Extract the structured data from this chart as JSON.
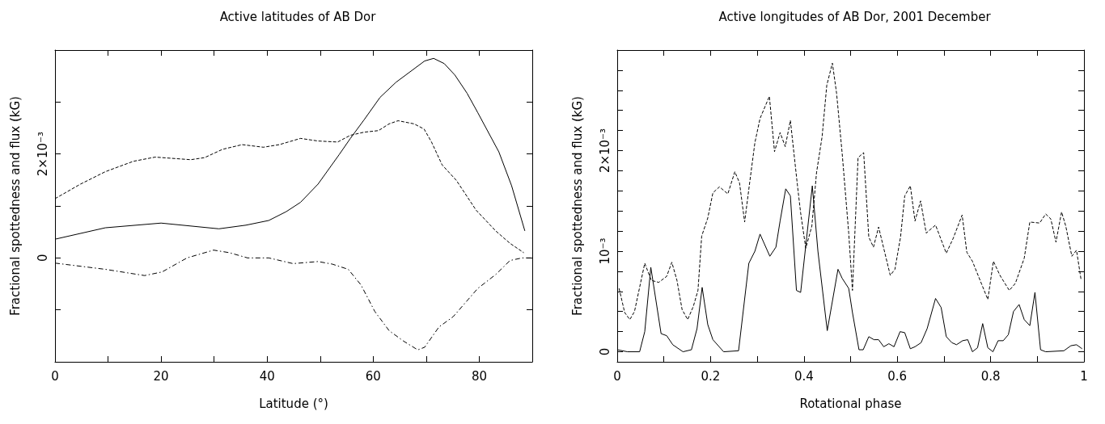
{
  "chart_data": [
    {
      "type": "line",
      "title": "Active latitudes of AB Dor",
      "xlabel": "Latitude (°)",
      "ylabel": "Fractional spottedness and flux (kG)",
      "xlim": [
        0,
        90
      ],
      "xticks": [
        0,
        {
          "value": 10,
          "label": null
        },
        20,
        {
          "value": 30,
          "label": null
        },
        40,
        {
          "value": 50,
          "label": null
        },
        60,
        {
          "value": 70,
          "label": null
        },
        80,
        {
          "value": 90,
          "label": null
        }
      ],
      "ylim": [
        -0.002,
        0.004
      ],
      "yticks": [
        {
          "value": -0.001,
          "label": null
        },
        0,
        {
          "value": 0.001,
          "label": null
        },
        {
          "value": 0.002,
          "label": "2×10⁻³"
        },
        {
          "value": 0.003,
          "label": null
        }
      ],
      "grid": false,
      "marker": "none",
      "series": [
        {
          "color": "#000000",
          "line_style": "solid",
          "x": [
            0,
            9.5,
            20,
            30.9,
            36,
            40.3,
            43.6,
            46.3,
            49.6,
            53.6,
            55.7,
            58.3,
            61.3,
            64.3,
            69.7,
            71.4,
            73.4,
            75.4,
            77.7,
            79.7,
            83.7,
            86.1,
            88.6
          ],
          "values": [
            0.00036,
            0.00058,
            0.00067,
            0.00056,
            0.00063,
            0.00072,
            0.00089,
            0.00107,
            0.00142,
            0.00199,
            0.0023,
            0.00266,
            0.00309,
            0.00338,
            0.00379,
            0.00384,
            0.00374,
            0.00352,
            0.00317,
            0.0028,
            0.00204,
            0.00139,
            0.00052
          ]
        },
        {
          "color": "#000000",
          "line_style": "dashed",
          "x": [
            0,
            4.8,
            9.5,
            14.8,
            18.9,
            25.6,
            28.2,
            31.6,
            35.3,
            39.3,
            42.3,
            46.3,
            49.6,
            53.3,
            55.7,
            58.3,
            61,
            63,
            64.7,
            67.7,
            69.6,
            71,
            73,
            75.7,
            79.4,
            83.1,
            85.8,
            88.4
          ],
          "values": [
            0.00114,
            0.00142,
            0.00166,
            0.00186,
            0.00194,
            0.00189,
            0.00193,
            0.00209,
            0.00218,
            0.00213,
            0.00218,
            0.0023,
            0.00225,
            0.00223,
            0.00236,
            0.00242,
            0.00245,
            0.00258,
            0.00264,
            0.00258,
            0.00248,
            0.00223,
            0.00179,
            0.00149,
            0.00092,
            0.00052,
            0.00028,
            0.0001
          ]
        },
        {
          "color": "#000000",
          "line_style": "dashdot",
          "x": [
            0,
            9.5,
            16.9,
            20.2,
            24.9,
            29.9,
            32.9,
            36.3,
            40.3,
            44.9,
            49.6,
            52.3,
            55.3,
            57.7,
            60.3,
            63,
            65.7,
            68.4,
            69.7,
            72.4,
            75.1,
            79.7,
            83.1,
            85.8,
            88.1,
            90
          ],
          "values": [
            -0.0001,
            -0.00022,
            -0.00034,
            -0.00027,
            0,
            0.00015,
            0.0001,
            0,
            0,
            -0.00011,
            -7e-05,
            -0.00012,
            -0.00022,
            -0.00052,
            -0.00103,
            -0.0014,
            -0.0016,
            -0.00177,
            -0.00172,
            -0.00133,
            -0.00113,
            -0.00059,
            -0.00032,
            -5e-05,
            0,
            0
          ]
        }
      ]
    },
    {
      "type": "line",
      "title": "Active longitudes of AB Dor, 2001 December",
      "xlabel": "Rotational phase",
      "ylabel": "Fractional spottedness and flux (kG)",
      "xlim": [
        0,
        1
      ],
      "xticks": [
        0,
        {
          "value": 0.1,
          "label": null
        },
        0.2,
        {
          "value": 0.3,
          "label": null
        },
        0.4,
        {
          "value": 0.5,
          "label": null
        },
        0.6,
        {
          "value": 0.7,
          "label": null
        },
        0.8,
        {
          "value": 0.9,
          "label": null
        },
        1
      ],
      "ylim": [
        -0.0001,
        0.003
      ],
      "yticks": [
        0,
        {
          "value": 0.0002,
          "label": null
        },
        {
          "value": 0.0004,
          "label": null
        },
        {
          "value": 0.0006,
          "label": null
        },
        {
          "value": 0.0008,
          "label": null
        },
        {
          "value": 0.001,
          "label": "10⁻³"
        },
        {
          "value": 0.0012,
          "label": null
        },
        {
          "value": 0.0014,
          "label": null
        },
        {
          "value": 0.0016,
          "label": null
        },
        {
          "value": 0.0018,
          "label": null
        },
        {
          "value": 0.002,
          "label": "2×10⁻³"
        },
        {
          "value": 0.0022,
          "label": null
        },
        {
          "value": 0.0024,
          "label": null
        },
        {
          "value": 0.0026,
          "label": null
        },
        {
          "value": 0.0028,
          "label": null
        }
      ],
      "grid": false,
      "marker": "none",
      "series": [
        {
          "color": "#000000",
          "line_style": "solid",
          "x": [
            0,
            0.022,
            0.048,
            0.059,
            0.072,
            0.094,
            0.106,
            0.119,
            0.141,
            0.159,
            0.171,
            0.182,
            0.194,
            0.205,
            0.228,
            0.26,
            0.282,
            0.295,
            0.306,
            0.327,
            0.34,
            0.349,
            0.361,
            0.371,
            0.384,
            0.393,
            0.418,
            0.43,
            0.45,
            0.473,
            0.482,
            0.496,
            0.504,
            0.518,
            0.527,
            0.539,
            0.55,
            0.56,
            0.571,
            0.582,
            0.593,
            0.606,
            0.616,
            0.628,
            0.638,
            0.651,
            0.664,
            0.682,
            0.694,
            0.705,
            0.717,
            0.727,
            0.74,
            0.751,
            0.761,
            0.772,
            0.783,
            0.794,
            0.805,
            0.816,
            0.827,
            0.838,
            0.849,
            0.861,
            0.872,
            0.884,
            0.895,
            0.907,
            0.918,
            0.957,
            0.972,
            0.984,
            0.996
          ],
          "values": [
            2e-05,
            0,
            0,
            0.0002,
            0.00084,
            0.00018,
            0.00016,
            7e-05,
            0,
            2e-05,
            0.00023,
            0.00064,
            0.00027,
            0.00012,
            0,
            1e-05,
            0.00088,
            0.001,
            0.00117,
            0.00095,
            0.00104,
            0.0013,
            0.00162,
            0.00155,
            0.00061,
            0.00059,
            0.00165,
            0.001,
            0.00021,
            0.00082,
            0.00073,
            0.00063,
            0.00039,
            2e-05,
            2e-05,
            0.00015,
            0.00012,
            0.00012,
            5e-05,
            8e-05,
            5e-05,
            0.0002,
            0.00019,
            3e-05,
            5e-05,
            9e-05,
            0.00023,
            0.00053,
            0.00044,
            0.00015,
            9e-05,
            7e-05,
            0.00011,
            0.00012,
            0,
            4e-05,
            0.00028,
            4e-05,
            0,
            0.00011,
            0.00011,
            0.00017,
            0.0004,
            0.00047,
            0.00032,
            0.00026,
            0.00059,
            2e-05,
            0,
            1e-05,
            6e-05,
            7e-05,
            3e-05
          ]
        },
        {
          "color": "#000000",
          "line_style": "dashed",
          "x": [
            0.004,
            0.016,
            0.027,
            0.037,
            0.059,
            0.073,
            0.089,
            0.106,
            0.117,
            0.128,
            0.139,
            0.151,
            0.163,
            0.173,
            0.181,
            0.194,
            0.205,
            0.219,
            0.237,
            0.252,
            0.262,
            0.273,
            0.284,
            0.295,
            0.306,
            0.326,
            0.337,
            0.349,
            0.36,
            0.371,
            0.386,
            0.393,
            0.404,
            0.417,
            0.427,
            0.439,
            0.449,
            0.461,
            0.47,
            0.482,
            0.496,
            0.504,
            0.516,
            0.528,
            0.539,
            0.549,
            0.56,
            0.585,
            0.595,
            0.607,
            0.616,
            0.628,
            0.638,
            0.65,
            0.662,
            0.682,
            0.705,
            0.72,
            0.739,
            0.749,
            0.761,
            0.794,
            0.806,
            0.82,
            0.84,
            0.853,
            0.872,
            0.884,
            0.905,
            0.918,
            0.929,
            0.94,
            0.952,
            0.961,
            0.974,
            0.984,
            0.994
          ],
          "values": [
            0.00063,
            0.00039,
            0.00032,
            0.0004,
            0.00088,
            0.00071,
            0.00069,
            0.00075,
            0.00089,
            0.00071,
            0.00042,
            0.00032,
            0.00045,
            0.00061,
            0.00115,
            0.00133,
            0.00158,
            0.00164,
            0.00157,
            0.00179,
            0.00168,
            0.00129,
            0.00169,
            0.00208,
            0.00232,
            0.00254,
            0.00199,
            0.00218,
            0.00204,
            0.0023,
            0.00166,
            0.00138,
            0.00103,
            0.00125,
            0.00178,
            0.00214,
            0.00265,
            0.00287,
            0.00257,
            0.00197,
            0.00118,
            0.00061,
            0.00193,
            0.00198,
            0.00114,
            0.00104,
            0.00124,
            0.00076,
            0.00082,
            0.00114,
            0.00155,
            0.00165,
            0.0013,
            0.0015,
            0.00118,
            0.00126,
            0.00098,
            0.00113,
            0.00136,
            0.00099,
            0.0009,
            0.00052,
            0.0009,
            0.00076,
            0.00061,
            0.00068,
            0.00093,
            0.00129,
            0.00128,
            0.00137,
            0.00132,
            0.00109,
            0.00139,
            0.00125,
            0.00095,
            0.00101,
            0.00071
          ]
        }
      ]
    }
  ]
}
